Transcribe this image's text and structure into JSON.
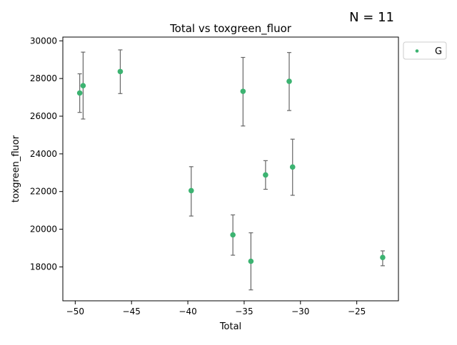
{
  "annotation": "N = 11",
  "chart_data": {
    "type": "scatter",
    "title": "Total vs toxgreen_fluor",
    "xlabel": "Total",
    "ylabel": "toxgreen_fluor",
    "xlim": [
      -51.1,
      -21.3
    ],
    "ylim": [
      16200,
      30200
    ],
    "x_ticks": [
      -50,
      -45,
      -40,
      -35,
      -30,
      -25
    ],
    "x_tick_labels": [
      "−50",
      "−45",
      "−40",
      "−35",
      "−30",
      "−25"
    ],
    "y_ticks": [
      18000,
      20000,
      22000,
      24000,
      26000,
      28000,
      30000
    ],
    "y_tick_labels": [
      "18000",
      "20000",
      "22000",
      "24000",
      "26000",
      "28000",
      "30000"
    ],
    "grid": false,
    "legend_position": "outside-top-right",
    "marker_color": "#3cb371",
    "errorbar_color": "#666666",
    "series": [
      {
        "name": "G",
        "points": [
          {
            "x": -49.6,
            "y": 27230,
            "low": 26200,
            "high": 28250
          },
          {
            "x": -49.3,
            "y": 27620,
            "low": 25850,
            "high": 29400
          },
          {
            "x": -46.0,
            "y": 28370,
            "low": 27200,
            "high": 29520
          },
          {
            "x": -39.7,
            "y": 22050,
            "low": 20700,
            "high": 23320
          },
          {
            "x": -36.0,
            "y": 19700,
            "low": 18620,
            "high": 20760
          },
          {
            "x": -35.1,
            "y": 27320,
            "low": 25480,
            "high": 29120
          },
          {
            "x": -34.4,
            "y": 18300,
            "low": 16780,
            "high": 19810
          },
          {
            "x": -33.1,
            "y": 22880,
            "low": 22120,
            "high": 23640
          },
          {
            "x": -31.0,
            "y": 27850,
            "low": 26300,
            "high": 29380
          },
          {
            "x": -30.7,
            "y": 23300,
            "low": 21800,
            "high": 24780
          },
          {
            "x": -22.7,
            "y": 18500,
            "low": 18060,
            "high": 18850
          }
        ]
      }
    ]
  }
}
